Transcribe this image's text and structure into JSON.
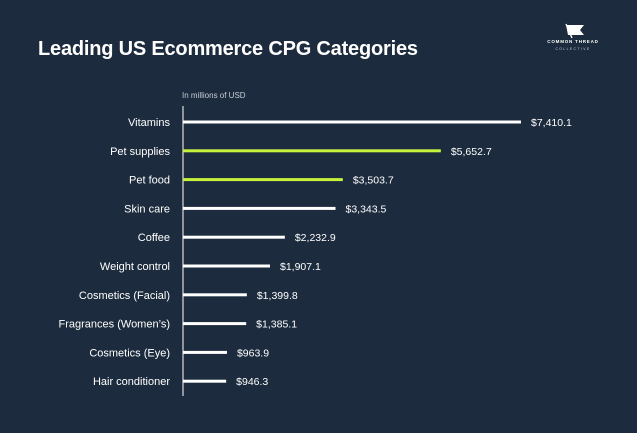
{
  "title": "Leading US Ecommerce CPG Categories",
  "brand": {
    "name": "COMMON THREAD",
    "sub": "COLLECTIVE"
  },
  "colors": {
    "background": "#1c2b3d",
    "bar_default": "#ffffff",
    "bar_highlight": "#c6f23b",
    "axis": "#ffffff"
  },
  "chart_data": {
    "type": "bar",
    "orientation": "horizontal",
    "unit_label": "In millions of USD",
    "categories": [
      "Vitamins",
      "Pet supplies",
      "Pet food",
      "Skin care",
      "Coffee",
      "Weight control",
      "Cosmetics (Facial)",
      "Fragrances (Women’s)",
      "Cosmetics (Eye)",
      "Hair conditioner"
    ],
    "values": [
      7410.1,
      5652.7,
      3503.7,
      3343.5,
      2232.9,
      1907.1,
      1399.8,
      1385.1,
      963.9,
      946.3
    ],
    "value_labels": [
      "$7,410.1",
      "$5,652.7",
      "$3,503.7",
      "$3,343.5",
      "$2,232.9",
      "$1,907.1",
      "$1,399.8",
      "$1,385.1",
      "$963.9",
      "$946.3"
    ],
    "highlighted": [
      "Pet supplies",
      "Pet food"
    ],
    "xlim": [
      0,
      7410.1
    ],
    "grid": false,
    "legend": "none"
  }
}
